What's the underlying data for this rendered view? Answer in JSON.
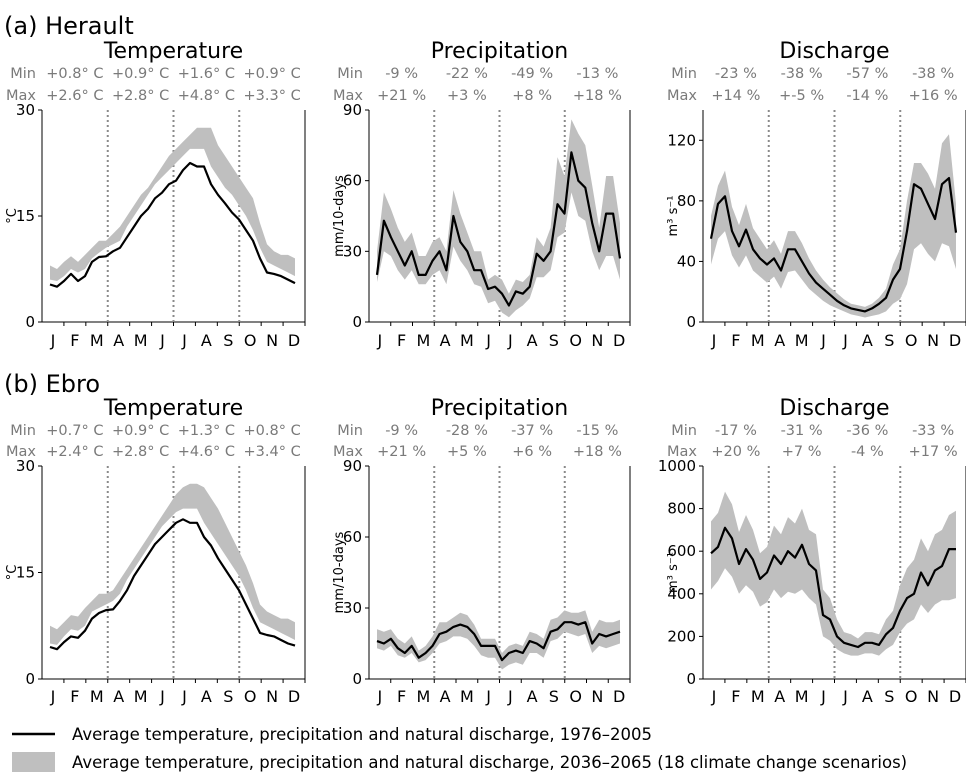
{
  "sections": [
    {
      "label": "(a) Herault"
    },
    {
      "label": "(b) Ebro"
    }
  ],
  "row_labels": {
    "min": "Min",
    "max": "Max"
  },
  "month_labels": [
    "J",
    "F",
    "M",
    "A",
    "M",
    "J",
    "J",
    "A",
    "S",
    "O",
    "N",
    "D"
  ],
  "legend": {
    "line_text": "Average temperature, precipitation and natural discharge, 1976–2005",
    "band_text": "Average temperature, precipitation and natural discharge, 2036–2065 (18 climate change scenarios)",
    "line_color": "#000000",
    "band_color": "#bfbfbf"
  },
  "chart_data": [
    {
      "type": "line",
      "section": "(a) Herault",
      "title": "Temperature",
      "ylabel": "°C",
      "ylim": [
        0,
        30
      ],
      "yticks": [
        "0",
        "15",
        "30"
      ],
      "x": [
        0,
        1,
        2,
        3,
        4,
        5,
        6,
        7,
        8,
        9,
        10,
        11,
        12,
        13,
        14,
        15,
        16,
        17,
        18,
        19,
        20,
        21,
        22,
        23,
        24,
        25,
        26,
        27,
        28,
        29,
        30,
        31,
        32,
        33,
        34,
        35
      ],
      "season_min": [
        "+0.8° C",
        "+0.9° C",
        "+1.6° C",
        "+0.9° C"
      ],
      "season_max": [
        "+2.6° C",
        "+2.8° C",
        "+4.8° C",
        "+3.3° C"
      ],
      "series": [
        {
          "name": "1976–2005",
          "values": [
            5.3,
            5,
            5.8,
            6.8,
            5.8,
            6.5,
            8.5,
            9.2,
            9.3,
            10,
            10.5,
            12,
            13.5,
            15,
            16,
            17.5,
            18.3,
            19.5,
            20,
            21.5,
            22.5,
            22,
            22,
            19.5,
            18,
            16.8,
            15.5,
            14.5,
            13,
            11.5,
            9,
            7,
            6.8,
            6.5,
            6,
            5.5
          ]
        },
        {
          "name": "2036–2065 (18 climate change scenarios)",
          "band_low": [
            6,
            5.8,
            6.5,
            7.5,
            7,
            7.5,
            9,
            9.8,
            10.5,
            11,
            11.5,
            13.5,
            15,
            16.5,
            18,
            19.5,
            20.5,
            21.5,
            22.5,
            23.5,
            24.5,
            24.5,
            24.5,
            22,
            20.5,
            19,
            18,
            16.5,
            15,
            13,
            10.5,
            8.5,
            8,
            7.5,
            7,
            6.5
          ],
          "band_high": [
            8,
            7.5,
            8.5,
            9.3,
            8.5,
            9.5,
            10.5,
            11.5,
            11.5,
            12.5,
            13.5,
            15,
            16.5,
            18,
            19,
            20.5,
            22,
            23.5,
            24.5,
            25.5,
            26.5,
            27.5,
            27.5,
            27.5,
            25,
            23.5,
            22,
            20.5,
            19,
            17.5,
            14,
            11,
            10,
            9.5,
            9.5,
            9
          ]
        }
      ]
    },
    {
      "type": "line",
      "section": "(a) Herault",
      "title": "Precipitation",
      "ylabel": "mm/10-days",
      "ylim": [
        0,
        90
      ],
      "yticks": [
        "0",
        "30",
        "60",
        "90"
      ],
      "x": [
        0,
        1,
        2,
        3,
        4,
        5,
        6,
        7,
        8,
        9,
        10,
        11,
        12,
        13,
        14,
        15,
        16,
        17,
        18,
        19,
        20,
        21,
        22,
        23,
        24,
        25,
        26,
        27,
        28,
        29,
        30,
        31,
        32,
        33,
        34,
        35
      ],
      "season_min": [
        "-9 %",
        "-22 %",
        "-49 %",
        "-13 %"
      ],
      "season_max": [
        "+21 %",
        "+3 %",
        "+8 %",
        "+18 %"
      ],
      "series": [
        {
          "name": "1976–2005",
          "values": [
            20,
            43,
            36,
            30,
            24,
            30,
            20,
            20,
            26,
            30,
            22,
            45,
            34,
            30,
            22,
            22,
            14,
            15,
            12,
            7,
            13,
            12,
            15,
            29,
            26,
            30,
            50,
            46,
            72,
            60,
            57,
            42,
            30,
            46,
            46,
            27
          ]
        },
        {
          "name": "2036–2065 (18 climate change scenarios)",
          "band_low": [
            17,
            30,
            28,
            22,
            18,
            22,
            16,
            16,
            20,
            22,
            16,
            32,
            26,
            22,
            16,
            15,
            8,
            9,
            4,
            2,
            5,
            7,
            10,
            19,
            19,
            22,
            36,
            38,
            55,
            45,
            43,
            30,
            22,
            28,
            28,
            18
          ],
          "band_high": [
            30,
            55,
            48,
            40,
            34,
            38,
            28,
            28,
            34,
            36,
            30,
            56,
            46,
            38,
            30,
            30,
            18,
            20,
            18,
            12,
            18,
            17,
            20,
            36,
            32,
            40,
            70,
            62,
            86,
            80,
            75,
            58,
            40,
            62,
            62,
            42
          ]
        }
      ]
    },
    {
      "type": "line",
      "section": "(a) Herault",
      "title": "Discharge",
      "ylabel": "m³ s⁻¹",
      "ylim": [
        0,
        140
      ],
      "yticks": [
        "0",
        "40",
        "80",
        "120"
      ],
      "x": [
        0,
        1,
        2,
        3,
        4,
        5,
        6,
        7,
        8,
        9,
        10,
        11,
        12,
        13,
        14,
        15,
        16,
        17,
        18,
        19,
        20,
        21,
        22,
        23,
        24,
        25,
        26,
        27,
        28,
        29,
        30,
        31,
        32,
        33,
        34,
        35
      ],
      "season_min": [
        "-23 %",
        "-38 %",
        "-57 %",
        "-38 %"
      ],
      "season_max": [
        "+14 %",
        "+-5 %",
        "-14 %",
        "+16 %"
      ],
      "series": [
        {
          "name": "1976–2005",
          "values": [
            55,
            78,
            83,
            60,
            50,
            61,
            48,
            42,
            38,
            42,
            34,
            48,
            48,
            40,
            32,
            26,
            22,
            18,
            14,
            11,
            9,
            8,
            7,
            9,
            12,
            16,
            28,
            35,
            60,
            91,
            88,
            78,
            68,
            91,
            95,
            59
          ]
        },
        {
          "name": "2036–2065 (18 climate change scenarios)",
          "band_low": [
            38,
            55,
            60,
            44,
            36,
            44,
            34,
            30,
            26,
            30,
            22,
            33,
            34,
            28,
            22,
            18,
            14,
            11,
            9,
            7,
            5,
            4,
            3,
            4,
            5,
            7,
            12,
            15,
            25,
            48,
            52,
            45,
            40,
            52,
            50,
            35
          ],
          "band_high": [
            70,
            90,
            100,
            76,
            64,
            78,
            62,
            55,
            48,
            54,
            45,
            60,
            60,
            52,
            42,
            34,
            28,
            23,
            19,
            15,
            12,
            11,
            10,
            12,
            16,
            22,
            38,
            48,
            80,
            105,
            105,
            98,
            88,
            118,
            124,
            78
          ]
        }
      ]
    },
    {
      "type": "line",
      "section": "(b) Ebro",
      "title": "Temperature",
      "ylabel": "°C",
      "ylim": [
        0,
        30
      ],
      "yticks": [
        "0",
        "15",
        "30"
      ],
      "x": [
        0,
        1,
        2,
        3,
        4,
        5,
        6,
        7,
        8,
        9,
        10,
        11,
        12,
        13,
        14,
        15,
        16,
        17,
        18,
        19,
        20,
        21,
        22,
        23,
        24,
        25,
        26,
        27,
        28,
        29,
        30,
        31,
        32,
        33,
        34,
        35
      ],
      "season_min": [
        "+0.7° C",
        "+0.9° C",
        "+1.3° C",
        "+0.8° C"
      ],
      "season_max": [
        "+2.4° C",
        "+2.8° C",
        "+4.6° C",
        "+3.4° C"
      ],
      "series": [
        {
          "name": "1976–2005",
          "values": [
            4.5,
            4.2,
            5.2,
            6,
            5.8,
            6.8,
            8.5,
            9.3,
            9.7,
            9.8,
            11,
            12.5,
            14.5,
            16,
            17.5,
            19,
            20,
            21,
            22,
            22.5,
            22,
            22,
            20,
            18.8,
            17,
            15.5,
            14,
            12.5,
            10.5,
            8.5,
            6.5,
            6.2,
            6,
            5.5,
            5,
            4.7
          ]
        },
        {
          "name": "2036–2065 (18 climate change scenarios)",
          "band_low": [
            5,
            4.8,
            6,
            7,
            6.8,
            7.5,
            9.5,
            10,
            10.5,
            11,
            12,
            14,
            15.5,
            17,
            18.5,
            20,
            21.5,
            22.5,
            23.5,
            24,
            24,
            24,
            22,
            20.5,
            19,
            17.5,
            16,
            14.5,
            12.5,
            10,
            8,
            7.5,
            7,
            6.5,
            6,
            5.5
          ],
          "band_high": [
            7.5,
            7,
            8,
            9,
            8.8,
            10,
            11,
            12,
            12,
            12.5,
            14,
            15.5,
            17,
            18.5,
            20,
            21.5,
            23,
            24.5,
            26,
            27,
            27.5,
            27.5,
            27,
            25.5,
            24,
            22,
            20,
            18,
            16,
            13.5,
            10.5,
            9.5,
            9,
            8.5,
            8.5,
            8
          ]
        }
      ]
    },
    {
      "type": "line",
      "section": "(b) Ebro",
      "title": "Precipitation",
      "ylabel": "mm/10-days",
      "ylim": [
        0,
        90
      ],
      "yticks": [
        "0",
        "30",
        "60",
        "90"
      ],
      "x": [
        0,
        1,
        2,
        3,
        4,
        5,
        6,
        7,
        8,
        9,
        10,
        11,
        12,
        13,
        14,
        15,
        16,
        17,
        18,
        19,
        20,
        21,
        22,
        23,
        24,
        25,
        26,
        27,
        28,
        29,
        30,
        31,
        32,
        33,
        34,
        35
      ],
      "season_min": [
        "-9 %",
        "-28 %",
        "-37 %",
        "-15 %"
      ],
      "season_max": [
        "+21 %",
        "+5 %",
        "+6 %",
        "+18 %"
      ],
      "series": [
        {
          "name": "1976–2005",
          "values": [
            16,
            15,
            17,
            13,
            11,
            14,
            9,
            11,
            14,
            19,
            20,
            22,
            23,
            22,
            19,
            14,
            14,
            14,
            8,
            11,
            12,
            11,
            16,
            15,
            13,
            20,
            21,
            24,
            24,
            23,
            24,
            15,
            19,
            18,
            19,
            20
          ]
        },
        {
          "name": "2036–2065 (18 climate change scenarios)",
          "band_low": [
            13,
            12,
            14,
            10,
            9,
            11,
            7,
            8,
            11,
            15,
            16,
            18,
            18,
            17,
            14,
            10,
            9,
            9,
            4,
            6,
            7,
            6,
            11,
            11,
            9,
            16,
            17,
            20,
            19,
            18,
            19,
            11,
            14,
            13,
            14,
            15
          ],
          "band_high": [
            21,
            20,
            21,
            17,
            15,
            18,
            12,
            14,
            18,
            24,
            24,
            26,
            28,
            27,
            23,
            17,
            17,
            17,
            11,
            14,
            15,
            14,
            20,
            19,
            17,
            25,
            26,
            29,
            28,
            28,
            29,
            20,
            25,
            24,
            24,
            25
          ]
        }
      ]
    },
    {
      "type": "line",
      "section": "(b) Ebro",
      "title": "Discharge",
      "ylabel": "m³ s⁻¹",
      "ylim": [
        0,
        1000
      ],
      "yticks": [
        "0",
        "200",
        "400",
        "600",
        "800",
        "1000"
      ],
      "x": [
        0,
        1,
        2,
        3,
        4,
        5,
        6,
        7,
        8,
        9,
        10,
        11,
        12,
        13,
        14,
        15,
        16,
        17,
        18,
        19,
        20,
        21,
        22,
        23,
        24,
        25,
        26,
        27,
        28,
        29,
        30,
        31,
        32,
        33,
        34,
        35
      ],
      "season_min": [
        "-17 %",
        "-31 %",
        "-36 %",
        "-33 %"
      ],
      "season_max": [
        "+20 %",
        "+7 %",
        "-4 %",
        "+17 %"
      ],
      "series": [
        {
          "name": "1976–2005",
          "values": [
            590,
            620,
            710,
            660,
            540,
            610,
            560,
            470,
            500,
            580,
            540,
            600,
            570,
            630,
            540,
            510,
            300,
            280,
            200,
            170,
            160,
            150,
            170,
            170,
            160,
            210,
            240,
            320,
            380,
            400,
            500,
            440,
            510,
            530,
            610,
            610
          ]
        },
        {
          "name": "2036–2065 (18 climate change scenarios)",
          "band_low": [
            420,
            460,
            520,
            480,
            400,
            440,
            410,
            340,
            360,
            420,
            380,
            410,
            400,
            420,
            380,
            350,
            200,
            180,
            140,
            120,
            110,
            110,
            120,
            120,
            110,
            140,
            160,
            220,
            260,
            280,
            350,
            310,
            350,
            370,
            370,
            380
          ],
          "band_high": [
            740,
            780,
            880,
            820,
            690,
            770,
            700,
            590,
            620,
            720,
            680,
            760,
            730,
            800,
            700,
            680,
            420,
            380,
            280,
            220,
            210,
            190,
            220,
            220,
            210,
            280,
            320,
            440,
            520,
            560,
            660,
            600,
            680,
            700,
            770,
            790
          ]
        }
      ]
    }
  ]
}
